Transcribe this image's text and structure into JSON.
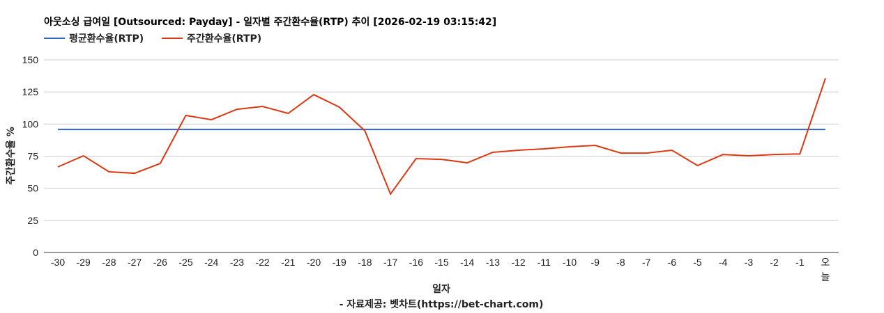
{
  "chart_data": {
    "type": "line",
    "title": "아웃소싱 급여일 [Outsourced: Payday] - 일자별 주간환수율(RTP) 추이 [2026-02-19 03:15:42]",
    "xlabel": "일자",
    "ylabel": "주간환수율 %",
    "footer": "- 자료제공: 벳차트(https://bet-chart.com)",
    "ylim": [
      0,
      150
    ],
    "yticks": [
      "0",
      "25",
      "50",
      "75",
      "100",
      "125",
      "150"
    ],
    "grid": true,
    "legend_position": "top-left",
    "categories": [
      "-30",
      "-29",
      "-28",
      "-27",
      "-26",
      "-25",
      "-24",
      "-23",
      "-22",
      "-21",
      "-20",
      "-19",
      "-18",
      "-17",
      "-16",
      "-15",
      "-14",
      "-13",
      "-12",
      "-11",
      "-10",
      "-9",
      "-8",
      "-7",
      "-6",
      "-5",
      "-4",
      "-3",
      "-2",
      "-1",
      "오늘"
    ],
    "series": [
      {
        "name": "평균환수율(RTP)",
        "color": "#3366cc",
        "values": [
          95.8,
          95.8,
          95.8,
          95.8,
          95.8,
          95.8,
          95.8,
          95.8,
          95.8,
          95.8,
          95.8,
          95.8,
          95.8,
          95.8,
          95.8,
          95.8,
          95.8,
          95.8,
          95.8,
          95.8,
          95.8,
          95.8,
          95.8,
          95.8,
          95.8,
          95.8,
          95.8,
          95.8,
          95.8,
          95.8,
          95.8
        ]
      },
      {
        "name": "주간환수율(RTP)",
        "color": "#dc3912",
        "values": [
          66.6,
          75.3,
          62.8,
          61.7,
          69.3,
          106.7,
          103.4,
          111.5,
          113.7,
          108.3,
          122.9,
          113.2,
          94.7,
          45.5,
          73.1,
          72.5,
          69.8,
          78.0,
          79.6,
          80.7,
          82.3,
          83.4,
          77.4,
          77.4,
          79.6,
          67.7,
          76.3,
          75.3,
          76.3,
          76.7,
          135.7
        ]
      }
    ]
  }
}
